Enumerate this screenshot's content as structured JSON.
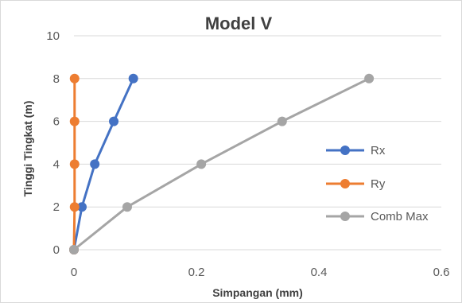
{
  "chart_data": {
    "type": "scatter",
    "title": "Model V",
    "xlabel": "Simpangan (mm)",
    "ylabel": "Tinggi Tingkat (m)",
    "xlim": [
      0,
      0.6
    ],
    "ylim": [
      0,
      10
    ],
    "x_ticks": [
      "0",
      "0.2",
      "0.4",
      "0.6"
    ],
    "y_ticks": [
      "0",
      "2",
      "4",
      "6",
      "8",
      "10"
    ],
    "grid": "horizontal",
    "legend_position": "right",
    "series": [
      {
        "name": "Rx",
        "color": "#4472c4",
        "points": [
          [
            0,
            0
          ],
          [
            0.013,
            2
          ],
          [
            0.034,
            4
          ],
          [
            0.065,
            6
          ],
          [
            0.097,
            8
          ]
        ]
      },
      {
        "name": "Ry",
        "color": "#ed7d31",
        "points": [
          [
            0,
            0
          ],
          [
            0.001,
            2
          ],
          [
            0.001,
            4
          ],
          [
            0.001,
            6
          ],
          [
            0.001,
            8
          ]
        ]
      },
      {
        "name": "Comb Max",
        "color": "#a5a5a5",
        "points": [
          [
            0,
            0
          ],
          [
            0.087,
            2
          ],
          [
            0.208,
            4
          ],
          [
            0.34,
            6
          ],
          [
            0.482,
            8
          ]
        ]
      }
    ]
  }
}
